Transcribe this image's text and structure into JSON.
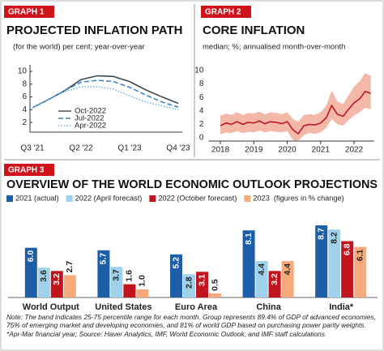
{
  "chart_data": [
    {
      "type": "line",
      "label": "GRAPH 1",
      "title": "PROJECTED INFLATION PATH",
      "subtitle": "(for the world)  per cent; year-over-year",
      "categories": [
        "Q3 '21",
        null,
        null,
        "Q2 '22",
        null,
        null,
        "Q1 '23",
        null,
        null,
        "Q4 '23"
      ],
      "series": [
        {
          "name": "Oct-2022",
          "color": "#3b4a56",
          "style": "solid",
          "values": [
            4.3,
            5.6,
            7.0,
            8.7,
            9.3,
            9.2,
            8.4,
            7.1,
            6.0,
            5.0
          ]
        },
        {
          "name": "Jul-2022",
          "color": "#3f86c4",
          "style": "dashed",
          "values": [
            4.3,
            5.6,
            7.0,
            8.3,
            8.6,
            8.4,
            7.5,
            6.3,
            5.2,
            4.4
          ]
        },
        {
          "name": "Apr-2022",
          "color": "#6fb7e4",
          "style": "dotted",
          "values": [
            4.3,
            5.6,
            6.8,
            7.6,
            7.6,
            7.2,
            6.2,
            5.2,
            4.6,
            4.0
          ]
        }
      ],
      "ylim": [
        1,
        10
      ],
      "yticks": [
        2,
        4,
        6,
        8,
        10
      ]
    },
    {
      "type": "line",
      "label": "GRAPH 2",
      "title": "CORE INFLATION",
      "subtitle": "median; %; annualised month-over-month",
      "x": [
        2018.0,
        2018.17,
        2018.33,
        2018.5,
        2018.67,
        2018.83,
        2019.0,
        2019.17,
        2019.33,
        2019.5,
        2019.67,
        2019.83,
        2020.0,
        2020.17,
        2020.33,
        2020.5,
        2020.67,
        2020.83,
        2021.0,
        2021.17,
        2021.33,
        2021.5,
        2021.67,
        2021.83,
        2022.0,
        2022.17,
        2022.33,
        2022.5
      ],
      "series": [
        {
          "color": "#c0161e",
          "values": [
            1.8,
            2.2,
            2.0,
            2.4,
            2.0,
            2.3,
            2.2,
            2.5,
            2.1,
            2.4,
            2.3,
            2.1,
            2.4,
            1.2,
            0.6,
            1.8,
            2.0,
            1.9,
            2.2,
            3.0,
            4.8,
            3.5,
            3.2,
            4.2,
            5.2,
            5.8,
            6.9,
            6.6
          ],
          "band_low": [
            0.5,
            0.8,
            0.7,
            1.0,
            0.7,
            0.9,
            0.8,
            1.1,
            0.8,
            1.0,
            0.9,
            0.8,
            1.0,
            -0.3,
            -0.5,
            0.4,
            0.7,
            0.6,
            0.8,
            1.5,
            2.8,
            2.0,
            1.8,
            2.6,
            3.3,
            3.8,
            4.5,
            4.2
          ],
          "band_high": [
            3.3,
            3.6,
            3.4,
            3.8,
            3.4,
            3.7,
            3.6,
            3.9,
            3.5,
            3.8,
            3.7,
            3.5,
            3.8,
            2.8,
            2.4,
            3.4,
            3.5,
            3.4,
            3.8,
            4.8,
            7.0,
            5.4,
            5.0,
            6.3,
            7.6,
            8.4,
            9.6,
            9.2
          ],
          "band_color": "#f3b8a8"
        }
      ],
      "xlim": [
        2017.5,
        2022.6
      ],
      "xticks": [
        2018,
        2019,
        2020,
        2021,
        2022
      ],
      "ylim": [
        0,
        10
      ],
      "yticks": [
        0,
        2,
        4,
        6,
        8,
        10
      ]
    },
    {
      "type": "bar",
      "label": "GRAPH 3",
      "title": "OVERVIEW OF THE WORLD ECONOMIC OUTLOOK PROJECTIONS",
      "legend_note": "(figures in % change)",
      "categories": [
        "World Output",
        "United States",
        "Euro Area",
        "China",
        "India*"
      ],
      "series": [
        {
          "name": "2021 (actual)",
          "color": "#1d5ea8",
          "values": [
            6,
            5.7,
            5.2,
            8.1,
            8.7
          ],
          "value_labels": [
            "6.0",
            "5.7",
            "5.2",
            "8.1",
            "8.7"
          ]
        },
        {
          "name": "2022 (April forecast)",
          "color": "#9fd2ea",
          "values": [
            3.6,
            3.7,
            2.8,
            4.4,
            8.2
          ],
          "value_labels": [
            "3.6",
            "3.7",
            "2.8",
            "4.4",
            "8.2"
          ]
        },
        {
          "name": "2022 (October forecast)",
          "color": "#c2141c",
          "values": [
            3.2,
            1.6,
            3.1,
            3.2,
            6.8
          ],
          "value_labels": [
            "3.2",
            "1.6",
            "3.1",
            "3.2",
            "6.8"
          ]
        },
        {
          "name": "2023",
          "color": "#f6aa7c",
          "values": [
            2.7,
            1,
            0.5,
            4.4,
            6.1
          ],
          "value_labels": [
            "2.7",
            "1.0",
            "0.5",
            "4.4",
            "6.1"
          ]
        }
      ],
      "ylim": [
        0,
        9
      ]
    }
  ],
  "note": "Note: The band indicates 25-75 percentile range for each month. Group represents 89.4% of GDP of advanced economies, 75% of emerging market and developing economies, and 81% of world GDP based on purchasing power parity weights. *Apr-Mar financial year; Source: Haver Analytics, IMF, World Economic Outlook;  and IMF staff calculations"
}
